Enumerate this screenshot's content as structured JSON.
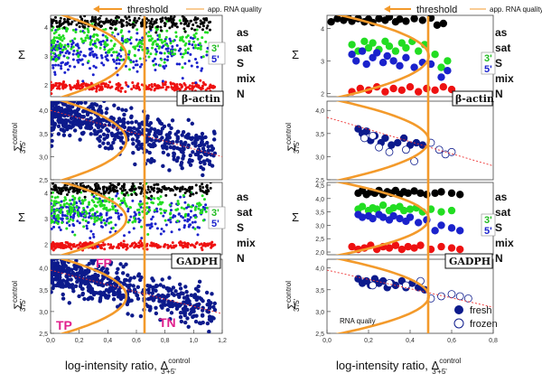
{
  "legend": {
    "threshold": "threshold",
    "quality": "app. RNA quality"
  },
  "colors": {
    "orange": "#f39a2b",
    "black": "#000000",
    "green": "#22dd22",
    "blue": "#1a22cc",
    "red": "#ee1111",
    "navy": "#0c1a8c",
    "trend": "#ee3333"
  },
  "labels": {
    "sigma": "Σ",
    "sigma_ctrl": "Σ",
    "sigma_ctrl_sup": "control",
    "sigma_ctrl_sub": "3'/5'",
    "xlabel_main": "log-intensity ratio, Δ",
    "xlabel_sup": "control",
    "xlabel_sub": "3'+5'",
    "gene1": "β-actin",
    "gene2": "GADPH",
    "classes": [
      "as",
      "sat",
      "S",
      "mix",
      "N"
    ],
    "side3": "3'",
    "side5": "5'",
    "fresh": "fresh",
    "frozen": "frozen",
    "rna": "RNA qualiy",
    "tp": "TP",
    "fp": "FP",
    "tn": "TN"
  },
  "chart_data": [
    {
      "id": "left-beta-actin-sigma",
      "type": "scatter",
      "x_range": [
        0,
        1.2
      ],
      "y_range": [
        1.6,
        4.4
      ],
      "y_ticks": [
        "2",
        "3",
        "4"
      ],
      "threshold_x": 0.51,
      "series": [
        {
          "name": "as",
          "y_mean": 4.2,
          "y_spread": 0.15
        },
        {
          "name": "sat",
          "y_mean": 3.5,
          "y_spread": 0.35
        },
        {
          "name": "S",
          "y_mean": 3.1,
          "y_spread": 0.45
        },
        {
          "name": "N",
          "y_mean": 1.95,
          "y_spread": 0.08
        }
      ]
    },
    {
      "id": "left-beta-actin-control",
      "type": "scatter",
      "x_range": [
        0,
        1.2
      ],
      "y_range": [
        2.5,
        4.2
      ],
      "y_ticks": [
        "2,5",
        "3,0",
        "3,5",
        "4,0"
      ],
      "threshold_x": 0.51,
      "trend": [
        [
          0.0,
          4.0
        ],
        [
          1.2,
          3.0
        ]
      ]
    },
    {
      "id": "left-gadph-sigma",
      "type": "scatter",
      "x_range": [
        0,
        1.2
      ],
      "y_range": [
        1.6,
        4.4
      ],
      "y_ticks": [
        "2",
        "3",
        "4"
      ],
      "threshold_x": 0.51
    },
    {
      "id": "left-gadph-control",
      "type": "scatter",
      "x_range": [
        0,
        1.2
      ],
      "y_range": [
        2.5,
        4.2
      ],
      "y_ticks": [
        "2,5",
        "3,0",
        "3,5",
        "4,0"
      ],
      "x_ticks": [
        "0,0",
        "0,2",
        "0,4",
        "0,6",
        "0,8",
        "1,0",
        "1,2"
      ],
      "threshold_x": 0.51,
      "trend": [
        [
          0.0,
          3.95
        ],
        [
          1.2,
          2.95
        ]
      ]
    },
    {
      "id": "right-beta-actin-sigma",
      "type": "scatter",
      "x_range": [
        0,
        0.8
      ],
      "y_range": [
        1.9,
        4.4
      ],
      "y_ticks": [
        "2",
        "3",
        "4"
      ],
      "threshold_x": 0.49,
      "series": [
        {
          "name": "as",
          "points": [
            [
              0.02,
              4.2
            ],
            [
              0.05,
              4.3
            ],
            [
              0.08,
              4.25
            ],
            [
              0.1,
              4.35
            ],
            [
              0.12,
              4.22
            ],
            [
              0.15,
              4.3
            ],
            [
              0.18,
              4.2
            ],
            [
              0.2,
              4.28
            ],
            [
              0.22,
              4.18
            ],
            [
              0.25,
              4.3
            ],
            [
              0.28,
              4.25
            ],
            [
              0.3,
              4.35
            ],
            [
              0.33,
              4.2
            ],
            [
              0.35,
              4.28
            ],
            [
              0.38,
              4.22
            ],
            [
              0.42,
              4.3
            ],
            [
              0.46,
              4.25
            ],
            [
              0.5,
              4.32
            ],
            [
              0.53,
              4.1
            ],
            [
              0.56,
              4.15
            ]
          ]
        },
        {
          "name": "sat",
          "points": [
            [
              0.12,
              3.5
            ],
            [
              0.15,
              3.3
            ],
            [
              0.18,
              3.6
            ],
            [
              0.2,
              3.4
            ],
            [
              0.22,
              3.55
            ],
            [
              0.25,
              3.35
            ],
            [
              0.28,
              3.6
            ],
            [
              0.3,
              3.45
            ],
            [
              0.33,
              3.3
            ],
            [
              0.36,
              3.55
            ],
            [
              0.38,
              3.4
            ],
            [
              0.41,
              3.6
            ],
            [
              0.44,
              3.3
            ],
            [
              0.47,
              3.5
            ],
            [
              0.52,
              3.2
            ],
            [
              0.55,
              2.8
            ],
            [
              0.58,
              3.0
            ]
          ]
        },
        {
          "name": "S",
          "points": [
            [
              0.12,
              3.2
            ],
            [
              0.14,
              3.0
            ],
            [
              0.17,
              3.3
            ],
            [
              0.19,
              2.9
            ],
            [
              0.22,
              3.1
            ],
            [
              0.24,
              3.25
            ],
            [
              0.27,
              2.95
            ],
            [
              0.29,
              3.15
            ],
            [
              0.32,
              3.0
            ],
            [
              0.35,
              2.85
            ],
            [
              0.38,
              3.1
            ],
            [
              0.42,
              2.8
            ],
            [
              0.46,
              2.95
            ],
            [
              0.5,
              2.9
            ],
            [
              0.55,
              2.5
            ],
            [
              0.58,
              2.7
            ]
          ]
        },
        {
          "name": "N",
          "points": [
            [
              0.12,
              2.05
            ],
            [
              0.16,
              2.15
            ],
            [
              0.2,
              2.1
            ],
            [
              0.24,
              2.2
            ],
            [
              0.28,
              2.05
            ],
            [
              0.32,
              2.15
            ],
            [
              0.36,
              2.1
            ],
            [
              0.4,
              2.2
            ],
            [
              0.44,
              2.05
            ],
            [
              0.48,
              2.15
            ],
            [
              0.52,
              2.1
            ],
            [
              0.56,
              2.2
            ],
            [
              0.6,
              2.12
            ]
          ]
        }
      ]
    },
    {
      "id": "right-beta-actin-control",
      "type": "scatter",
      "x_range": [
        0,
        0.8
      ],
      "y_range": [
        2.5,
        4.2
      ],
      "y_ticks": [
        "2,5",
        "3,0",
        "3,5",
        "4,0"
      ],
      "threshold_x": 0.49,
      "trend": [
        [
          0.0,
          3.85
        ],
        [
          0.8,
          2.8
        ]
      ],
      "series": [
        {
          "name": "fresh",
          "points": [
            [
              0.15,
              3.6
            ],
            [
              0.17,
              3.5
            ],
            [
              0.19,
              3.55
            ],
            [
              0.21,
              3.35
            ],
            [
              0.23,
              3.45
            ],
            [
              0.26,
              3.3
            ],
            [
              0.28,
              3.4
            ],
            [
              0.31,
              3.25
            ],
            [
              0.34,
              3.3
            ],
            [
              0.37,
              3.4
            ],
            [
              0.4,
              3.25
            ],
            [
              0.43,
              3.3
            ],
            [
              0.46,
              3.25
            ]
          ]
        },
        {
          "name": "frozen",
          "points": [
            [
              0.18,
              3.4
            ],
            [
              0.22,
              3.45
            ],
            [
              0.25,
              3.2
            ],
            [
              0.3,
              3.1
            ],
            [
              0.38,
              3.15
            ],
            [
              0.42,
              2.9
            ],
            [
              0.5,
              3.3
            ],
            [
              0.54,
              3.15
            ],
            [
              0.57,
              3.05
            ],
            [
              0.6,
              3.1
            ]
          ]
        }
      ]
    },
    {
      "id": "right-gadph-sigma",
      "type": "scatter",
      "x_range": [
        0,
        0.8
      ],
      "y_range": [
        1.9,
        4.6
      ],
      "y_ticks": [
        "2,0",
        "2,5",
        "3,0",
        "3,5",
        "4,0",
        "4,5"
      ],
      "threshold_x": 0.49,
      "series": [
        {
          "name": "as",
          "points": [
            [
              0.15,
              4.2
            ],
            [
              0.17,
              4.3
            ],
            [
              0.19,
              4.15
            ],
            [
              0.21,
              4.25
            ],
            [
              0.23,
              4.2
            ],
            [
              0.25,
              4.3
            ],
            [
              0.27,
              4.15
            ],
            [
              0.29,
              4.25
            ],
            [
              0.31,
              4.2
            ],
            [
              0.33,
              4.3
            ],
            [
              0.35,
              4.15
            ],
            [
              0.37,
              4.25
            ],
            [
              0.39,
              4.2
            ],
            [
              0.42,
              4.28
            ],
            [
              0.45,
              4.2
            ],
            [
              0.48,
              4.15
            ],
            [
              0.52,
              4.2
            ],
            [
              0.55,
              4.25
            ],
            [
              0.6,
              4.2
            ],
            [
              0.64,
              4.15
            ]
          ]
        },
        {
          "name": "sat",
          "points": [
            [
              0.15,
              3.6
            ],
            [
              0.17,
              3.7
            ],
            [
              0.2,
              3.55
            ],
            [
              0.22,
              3.65
            ],
            [
              0.24,
              3.6
            ],
            [
              0.27,
              3.75
            ],
            [
              0.3,
              3.55
            ],
            [
              0.32,
              3.65
            ],
            [
              0.35,
              3.7
            ],
            [
              0.37,
              3.55
            ],
            [
              0.4,
              3.6
            ],
            [
              0.43,
              3.65
            ],
            [
              0.46,
              3.5
            ],
            [
              0.5,
              3.6
            ],
            [
              0.55,
              3.5
            ],
            [
              0.6,
              3.55
            ]
          ]
        },
        {
          "name": "S",
          "points": [
            [
              0.15,
              3.4
            ],
            [
              0.17,
              3.3
            ],
            [
              0.2,
              3.35
            ],
            [
              0.22,
              3.25
            ],
            [
              0.25,
              3.4
            ],
            [
              0.27,
              3.3
            ],
            [
              0.3,
              3.2
            ],
            [
              0.32,
              3.35
            ],
            [
              0.35,
              3.25
            ],
            [
              0.38,
              3.15
            ],
            [
              0.4,
              3.3
            ],
            [
              0.44,
              3.1
            ],
            [
              0.48,
              3.2
            ],
            [
              0.52,
              2.8
            ],
            [
              0.55,
              3.0
            ],
            [
              0.6,
              2.9
            ],
            [
              0.64,
              2.8
            ]
          ]
        },
        {
          "name": "N",
          "points": [
            [
              0.12,
              2.2
            ],
            [
              0.15,
              2.1
            ],
            [
              0.18,
              2.15
            ],
            [
              0.21,
              2.25
            ],
            [
              0.24,
              2.1
            ],
            [
              0.27,
              2.2
            ],
            [
              0.3,
              2.15
            ],
            [
              0.33,
              2.25
            ],
            [
              0.36,
              2.1
            ],
            [
              0.39,
              2.2
            ],
            [
              0.42,
              2.15
            ],
            [
              0.45,
              2.25
            ],
            [
              0.5,
              2.1
            ],
            [
              0.55,
              2.2
            ],
            [
              0.6,
              2.15
            ],
            [
              0.64,
              2.1
            ]
          ]
        }
      ]
    },
    {
      "id": "right-gadph-control",
      "type": "scatter",
      "x_range": [
        0,
        0.8
      ],
      "y_range": [
        2.5,
        4.2
      ],
      "y_ticks": [
        "2,5",
        "3,0",
        "3,5",
        "4,0"
      ],
      "x_ticks": [
        "0,0",
        "0,2",
        "0,4",
        "0,6",
        "0,8"
      ],
      "threshold_x": 0.49,
      "trend": [
        [
          0.0,
          3.95
        ],
        [
          0.8,
          3.1
        ]
      ],
      "series": [
        {
          "name": "fresh",
          "points": [
            [
              0.15,
              3.75
            ],
            [
              0.17,
              3.65
            ],
            [
              0.19,
              3.7
            ],
            [
              0.21,
              3.6
            ],
            [
              0.23,
              3.75
            ],
            [
              0.25,
              3.65
            ],
            [
              0.27,
              3.7
            ],
            [
              0.29,
              3.55
            ],
            [
              0.31,
              3.65
            ],
            [
              0.33,
              3.6
            ],
            [
              0.36,
              3.7
            ],
            [
              0.38,
              3.55
            ],
            [
              0.41,
              3.65
            ],
            [
              0.44,
              3.55
            ],
            [
              0.47,
              3.5
            ]
          ]
        },
        {
          "name": "frozen",
          "points": [
            [
              0.22,
              3.6
            ],
            [
              0.3,
              3.65
            ],
            [
              0.38,
              3.6
            ],
            [
              0.45,
              3.7
            ],
            [
              0.5,
              3.3
            ],
            [
              0.55,
              3.35
            ],
            [
              0.6,
              3.4
            ],
            [
              0.64,
              3.35
            ],
            [
              0.68,
              3.3
            ]
          ]
        }
      ]
    }
  ]
}
